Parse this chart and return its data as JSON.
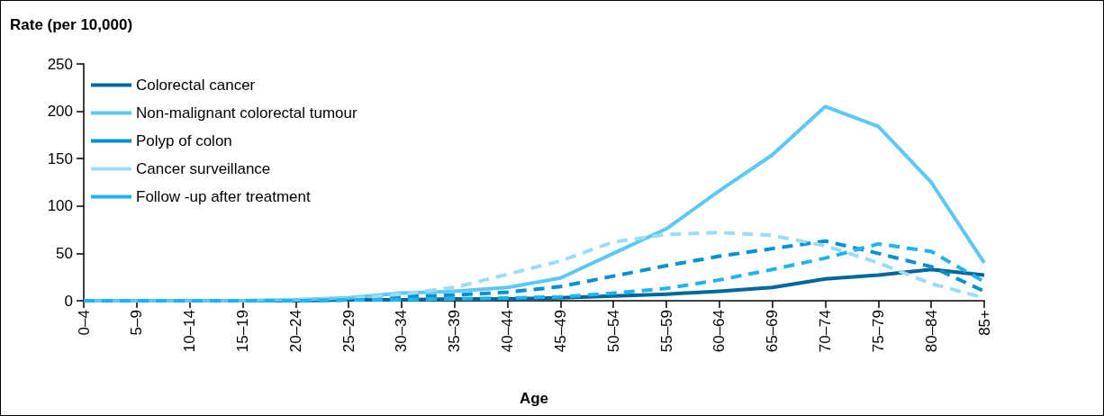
{
  "chart_data": {
    "type": "line",
    "ylabel": "Rate (per 10,000)",
    "xlabel": "Age",
    "categories": [
      "0–4",
      "5–9",
      "10–14",
      "15–19",
      "20–24",
      "25–29",
      "30–34",
      "35–39",
      "40–44",
      "45–49",
      "50–54",
      "55–59",
      "60–64",
      "65–69",
      "70–74",
      "75–79",
      "80–84",
      "85+"
    ],
    "series": [
      {
        "name": "Colorectal cancer",
        "color": "#00689c",
        "line_style": "solid",
        "values": [
          null,
          null,
          null,
          0,
          0,
          1,
          1,
          2,
          2,
          3,
          5,
          7,
          10,
          14,
          23,
          27,
          33,
          27
        ]
      },
      {
        "name": "Non-malignant colorectal tumour",
        "color": "#5bc8f5",
        "line_style": "solid",
        "values": [
          0,
          0,
          0,
          0,
          1,
          3,
          8,
          10,
          14,
          24,
          50,
          76,
          116,
          154,
          205,
          184,
          125,
          40
        ]
      },
      {
        "name": "Polyp of colon",
        "color": "#0090d4",
        "line_style": "dashed",
        "values": [
          0,
          0,
          0,
          0,
          0,
          1,
          4,
          6,
          9,
          15,
          26,
          37,
          47,
          55,
          63,
          50,
          36,
          10
        ]
      },
      {
        "name": "Cancer surveillance",
        "color": "#9ddcf9",
        "line_style": "dashed",
        "values": [
          0,
          0,
          0,
          0,
          1,
          2,
          7,
          14,
          28,
          42,
          62,
          70,
          72,
          69,
          58,
          40,
          18,
          3
        ]
      },
      {
        "name": "Follow -up after treatment",
        "color": "#1eb4ef",
        "line_style": "dashed",
        "values": [
          0,
          0,
          0,
          0,
          0,
          1,
          1,
          2,
          3,
          4,
          8,
          13,
          22,
          33,
          45,
          60,
          52,
          20
        ]
      }
    ],
    "ylim": [
      0,
      250
    ],
    "yticks": [
      0,
      50,
      100,
      150,
      200,
      250
    ],
    "grid": false,
    "legend": "top left",
    "marker": "none"
  }
}
